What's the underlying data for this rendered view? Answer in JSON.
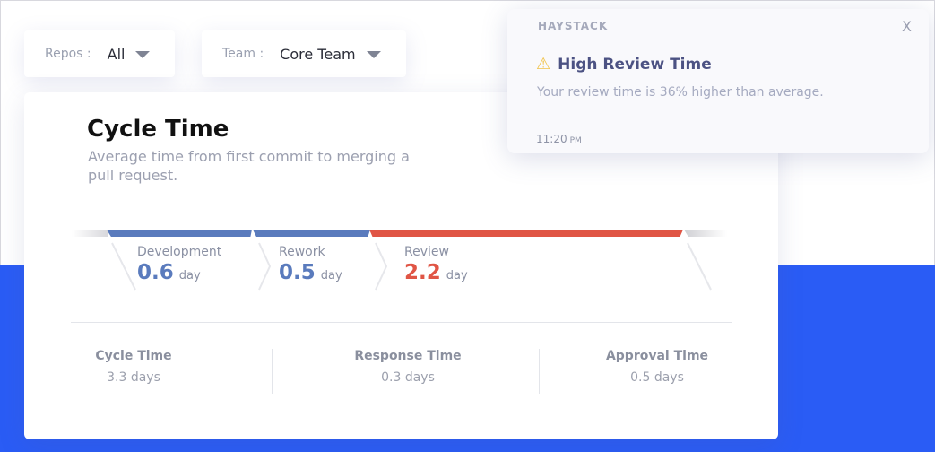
{
  "colors": {
    "accent_blue": "#2a5cf5",
    "development": "#5a7bbd",
    "review": "#e05545"
  },
  "filters": [
    {
      "label": "Repos :",
      "value": "All"
    },
    {
      "label": "Team :",
      "value": "Core Team"
    }
  ],
  "card": {
    "title": "Cycle Time",
    "subtitle": "Average time from first commit to merging a pull request.",
    "stages": [
      {
        "name": "Development",
        "value": "0.6",
        "unit": "day"
      },
      {
        "name": "Rework",
        "value": "0.5",
        "unit": "day"
      },
      {
        "name": "Review",
        "value": "2.2",
        "unit": "day"
      }
    ],
    "stats": [
      {
        "label": "Cycle Time",
        "value": "3.3 days"
      },
      {
        "label": "Response Time",
        "value": "0.3 days"
      },
      {
        "label": "Approval Time",
        "value": "0.5 days"
      }
    ]
  },
  "notification": {
    "brand": "HAYSTACK",
    "icon": "warning-icon",
    "title": "High Review Time",
    "message": "Your review time is 36% higher than average.",
    "time": "11:20",
    "ampm": "PM",
    "close": "X"
  }
}
